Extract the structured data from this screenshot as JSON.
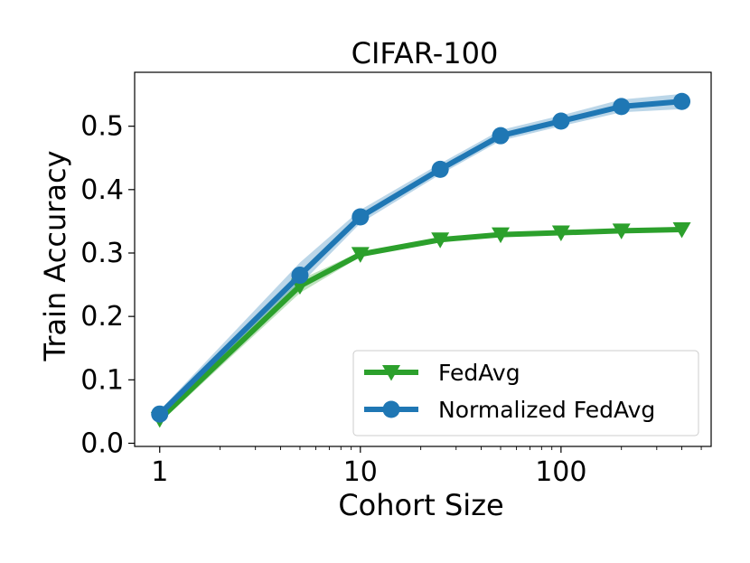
{
  "chart_data": {
    "type": "line",
    "title": "CIFAR-100",
    "xlabel": "Cohort Size",
    "ylabel": "Train Accuracy",
    "x_scale": "log",
    "x": [
      1,
      5,
      10,
      25,
      50,
      100,
      200,
      400
    ],
    "xlim": [
      0.75,
      560
    ],
    "ylim": [
      -0.005,
      0.585
    ],
    "x_ticks": [
      1,
      10,
      100
    ],
    "x_tick_labels": [
      "1",
      "10",
      "100"
    ],
    "y_ticks": [
      0.0,
      0.1,
      0.2,
      0.3,
      0.4,
      0.5
    ],
    "y_tick_labels": [
      "0.0",
      "0.1",
      "0.2",
      "0.3",
      "0.4",
      "0.5"
    ],
    "grid": false,
    "legend_position": "bottom-right",
    "series": [
      {
        "name": "FedAvg",
        "color": "#2ca02c",
        "marker": "triangle-down",
        "values": [
          0.038,
          0.248,
          0.298,
          0.321,
          0.329,
          0.332,
          0.335,
          0.337
        ],
        "lower": [
          0.032,
          0.237,
          0.294,
          0.318,
          0.326,
          0.33,
          0.333,
          0.335
        ],
        "upper": [
          0.044,
          0.258,
          0.302,
          0.324,
          0.332,
          0.335,
          0.337,
          0.339
        ]
      },
      {
        "name": "Normalized FedAvg",
        "color": "#1f77b4",
        "marker": "circle",
        "values": [
          0.046,
          0.265,
          0.357,
          0.432,
          0.485,
          0.508,
          0.531,
          0.539
        ],
        "lower": [
          0.04,
          0.25,
          0.347,
          0.424,
          0.477,
          0.5,
          0.522,
          0.527
        ],
        "upper": [
          0.052,
          0.285,
          0.368,
          0.441,
          0.494,
          0.517,
          0.542,
          0.551
        ]
      }
    ]
  }
}
